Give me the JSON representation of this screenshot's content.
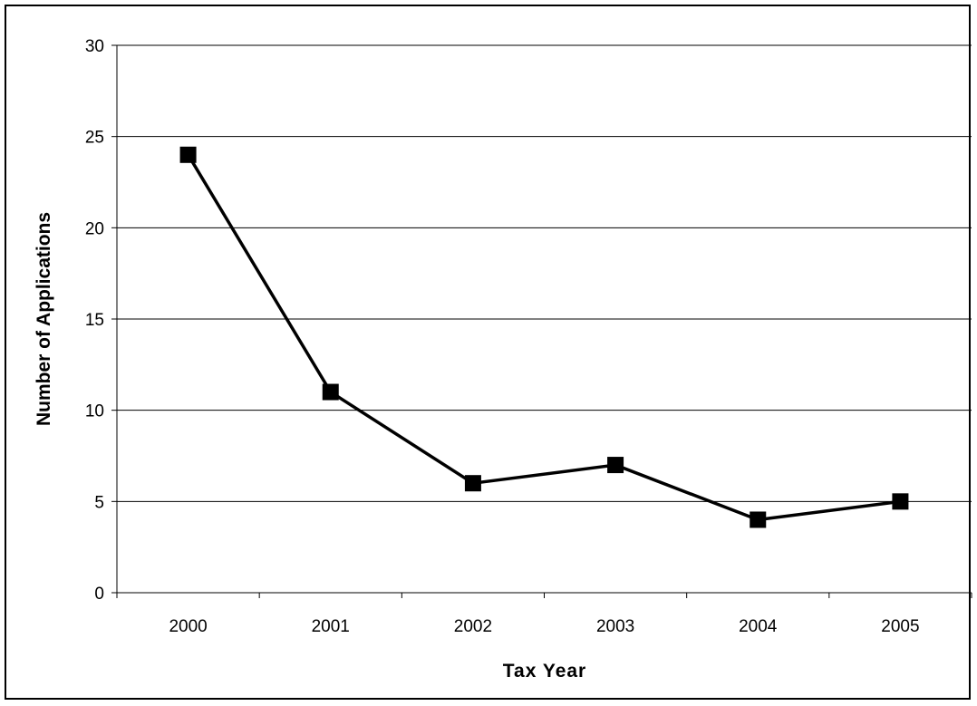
{
  "chart_data": {
    "type": "line",
    "title": "",
    "xlabel": "Tax Year",
    "ylabel": "Number of Applications",
    "categories": [
      "2000",
      "2001",
      "2002",
      "2003",
      "2004",
      "2005"
    ],
    "series": [
      {
        "values": [
          24,
          11,
          6,
          7,
          4,
          5
        ],
        "color": "#000000",
        "marker": "square"
      }
    ],
    "ylim": [
      0,
      30
    ],
    "yticks": [
      "0",
      "5",
      "10",
      "15",
      "20",
      "25",
      "30"
    ],
    "grid": true,
    "legend": "none"
  }
}
